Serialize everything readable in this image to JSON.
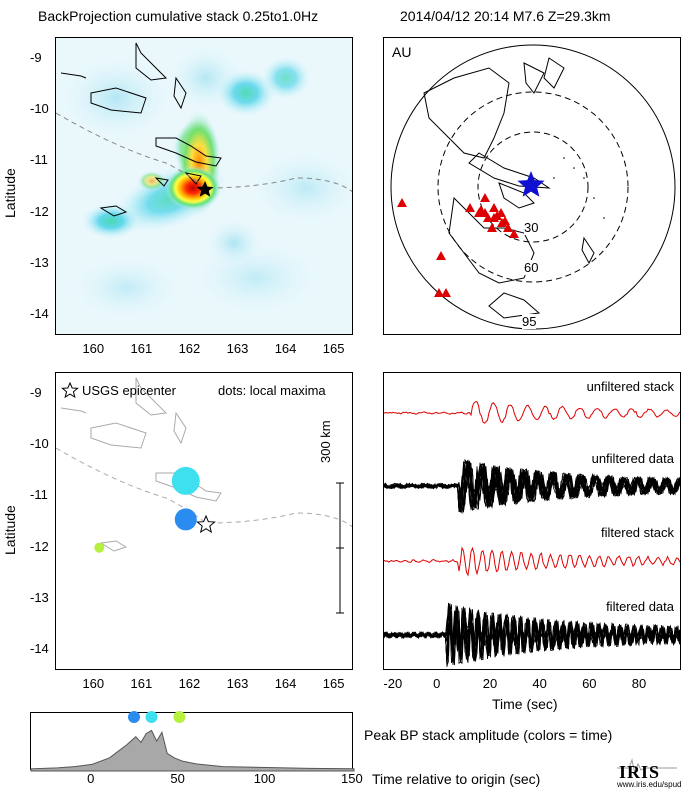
{
  "header": {
    "left_title": "BackProjection cumulative stack 0.25to1.0Hz",
    "right_title": "2014/04/12 20:14   M7.6  Z=29.3km"
  },
  "map_top": {
    "ylabel": "Latitude",
    "x_ticks": [
      "160",
      "161",
      "162",
      "163",
      "164",
      "165"
    ],
    "y_ticks": [
      "-9",
      "-10",
      "-11",
      "-12",
      "-13",
      "-14"
    ],
    "epicenter": {
      "lon": 162.2,
      "lat": -11.3
    }
  },
  "globe": {
    "label": "AU",
    "ring_labels": [
      "30",
      "60",
      "95"
    ],
    "source_star_color": "#1010d0",
    "station_color": "#dd0000"
  },
  "map_bottom": {
    "ylabel": "Latitude",
    "legend_epicenter": "USGS epicenter",
    "legend_dots": "dots: local maxima",
    "scale_label": "300 km",
    "x_ticks": [
      "160",
      "161",
      "162",
      "163",
      "164",
      "165"
    ],
    "y_ticks": [
      "-9",
      "-10",
      "-11",
      "-12",
      "-13",
      "-14"
    ],
    "maxima": [
      {
        "lon": 161.9,
        "lat": -10.7,
        "color": "#3ee0f0"
      },
      {
        "lon": 161.9,
        "lat": -11.45,
        "color": "#2a8cf0"
      },
      {
        "lon": 160.1,
        "lat": -12.0,
        "color": "#b8f040"
      }
    ]
  },
  "traces": {
    "labels": [
      "unfiltered stack",
      "unfiltered data",
      "filtered stack",
      "filtered data"
    ],
    "xlabel": "Time (sec)",
    "x_ticks": [
      "-20",
      "0",
      "20",
      "40",
      "60",
      "80"
    ]
  },
  "amplitude": {
    "caption": "Peak BP stack amplitude (colors = time)",
    "xlabel": "Time relative to origin (sec)",
    "x_ticks": [
      "0",
      "50",
      "100",
      "150"
    ],
    "peaks": [
      {
        "t": 24,
        "color": "#2a8cf0"
      },
      {
        "t": 34,
        "color": "#3ee0f0"
      },
      {
        "t": 50,
        "color": "#b8f040"
      }
    ]
  },
  "logo": {
    "name": "IRIS",
    "url": "www.iris.edu/spud"
  },
  "chart_data": [
    {
      "type": "heatmap",
      "title": "BackProjection cumulative stack 0.25to1.0Hz",
      "xlabel": "",
      "ylabel": "Latitude",
      "xlim": [
        159.2,
        165.4
      ],
      "ylim": [
        -14.4,
        -8.6
      ],
      "hotspots": [
        {
          "lon": 162.0,
          "lat": -11.3,
          "intensity": 1.0
        },
        {
          "lon": 161.9,
          "lat": -10.7,
          "intensity": 0.7
        },
        {
          "lon": 160.1,
          "lat": -12.0,
          "intensity": 0.4
        }
      ]
    },
    {
      "type": "scatter",
      "title": "",
      "ylabel": "Latitude",
      "xlim": [
        159.2,
        165.4
      ],
      "ylim": [
        -14.4,
        -8.6
      ],
      "series": [
        {
          "name": "USGS epicenter",
          "points": [
            [
              162.2,
              -11.3
            ]
          ]
        },
        {
          "name": "dots: local maxima",
          "points": [
            [
              161.9,
              -10.7
            ],
            [
              161.9,
              -11.45
            ],
            [
              160.1,
              -12.0
            ]
          ]
        }
      ]
    },
    {
      "type": "line",
      "xlabel": "Time (sec)",
      "xlim": [
        -25,
        95
      ],
      "series": [
        {
          "name": "unfiltered stack"
        },
        {
          "name": "unfiltered data"
        },
        {
          "name": "filtered stack"
        },
        {
          "name": "filtered data"
        }
      ]
    },
    {
      "type": "area",
      "xlabel": "Time relative to origin (sec)",
      "xlim": [
        -35,
        150
      ],
      "x": [
        -35,
        -20,
        -10,
        0,
        10,
        15,
        20,
        25,
        28,
        31,
        34,
        37,
        40,
        43,
        47,
        52,
        60,
        75,
        100,
        125,
        150
      ],
      "values": [
        0.05,
        0.07,
        0.1,
        0.15,
        0.3,
        0.45,
        0.6,
        0.78,
        0.65,
        0.85,
        0.92,
        0.68,
        0.88,
        0.4,
        0.3,
        0.22,
        0.16,
        0.1,
        0.08,
        0.06,
        0.05
      ]
    }
  ]
}
